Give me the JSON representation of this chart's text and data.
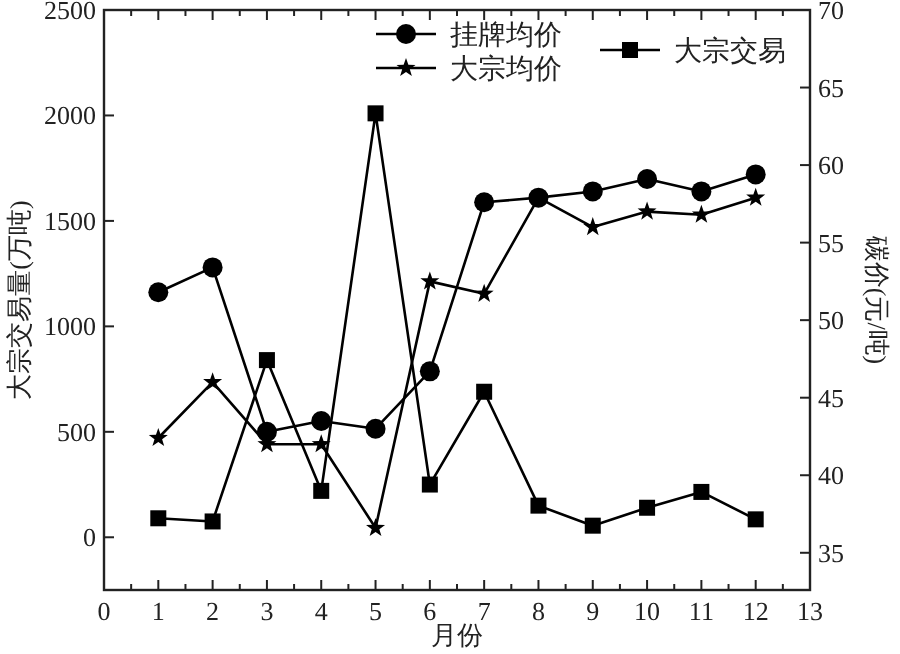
{
  "chart_data": {
    "type": "line",
    "xlabel": "月份",
    "ylabel": "大宗交易量(万吨)",
    "y2label": "碳价(元/吨)",
    "x": [
      1,
      2,
      3,
      4,
      5,
      6,
      7,
      8,
      9,
      10,
      11,
      12
    ],
    "series": [
      {
        "name": "挂牌均价",
        "color": "#000000",
        "marker": "circle",
        "axis": "y2",
        "values": [
          51.8,
          53.4,
          42.8,
          43.5,
          43.0,
          46.7,
          57.6,
          57.9,
          58.3,
          59.1,
          58.3,
          59.4
        ]
      },
      {
        "name": "大宗均价",
        "color": "#000000",
        "marker": "star",
        "axis": "y2",
        "values": [
          42.4,
          46.0,
          42.0,
          42.0,
          36.6,
          52.5,
          51.7,
          57.9,
          56.0,
          57.0,
          56.8,
          57.9
        ]
      },
      {
        "name": "大宗交易",
        "color": "#000000",
        "marker": "square",
        "values": [
          90,
          75,
          840,
          220,
          2010,
          250,
          690,
          150,
          55,
          140,
          215,
          85
        ]
      }
    ],
    "xlim": [
      0,
      13
    ],
    "xticks": [
      0,
      1,
      2,
      3,
      4,
      5,
      6,
      7,
      8,
      9,
      10,
      11,
      12,
      13
    ],
    "ylim": [
      -250,
      2500
    ],
    "yticks": [
      0,
      500,
      1000,
      1500,
      2000,
      2500
    ],
    "y2lim": [
      32.6,
      70
    ],
    "y2ticks": [
      35,
      40,
      45,
      50,
      55,
      60,
      65,
      70
    ],
    "legend": "top",
    "line_style": "solid",
    "grid": false
  }
}
